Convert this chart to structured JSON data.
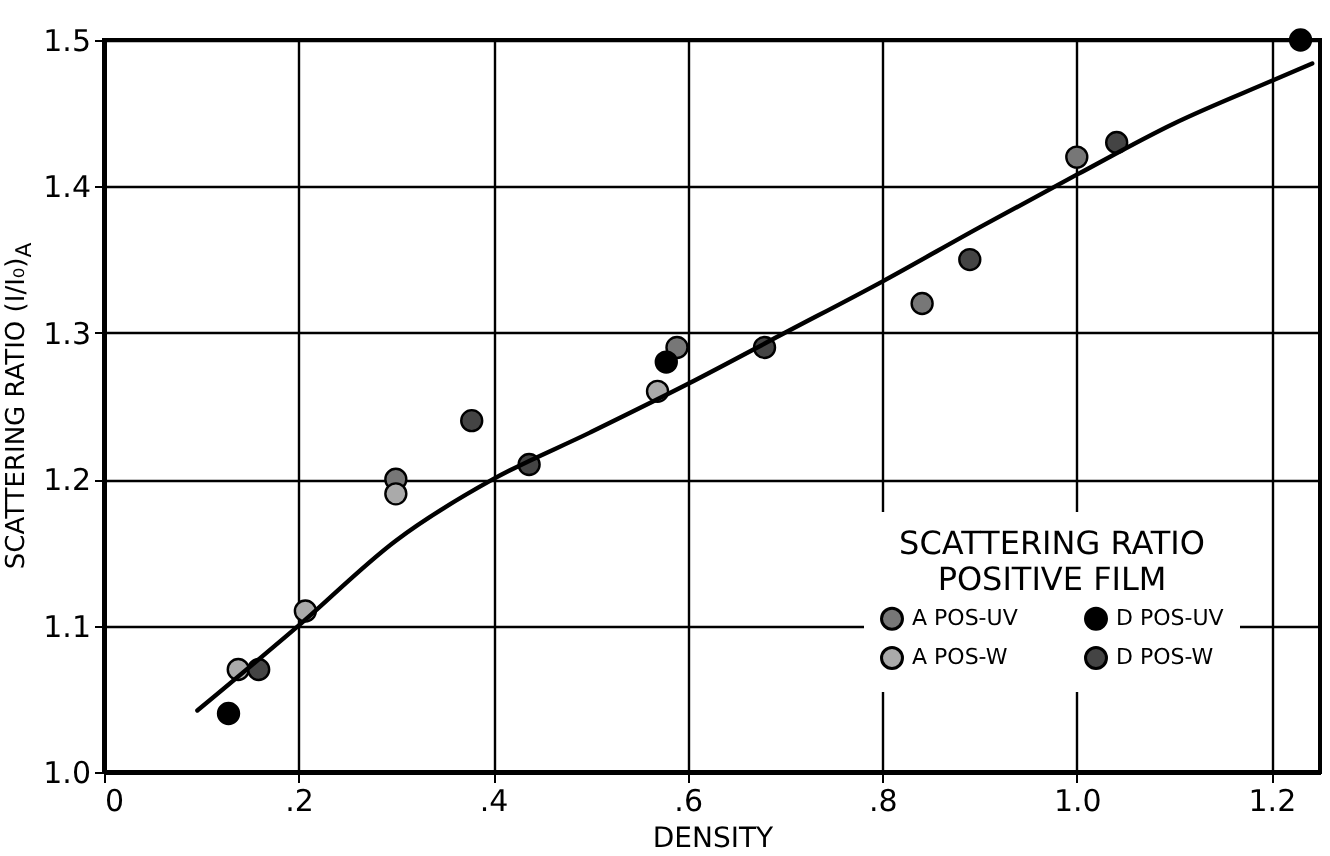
{
  "chart_data": {
    "type": "scatter",
    "xlabel": "DENSITY",
    "ylabel": "SCATTERING RATIO (I/I₀)$_{A}$",
    "legend_title": "SCATTERING RATIO\nPOSITIVE FILM",
    "legend": "bottom right",
    "grid": true,
    "xlim": [
      0,
      1.25
    ],
    "xticks": [
      0,
      {
        "value": 0.2,
        "label": ".2"
      },
      {
        "value": 0.4,
        "label": ".4"
      },
      {
        "value": 0.6,
        "label": ".6"
      },
      {
        "value": 0.8,
        "label": ".8"
      },
      {
        "value": 1.0,
        "label": "1.0"
      },
      {
        "value": 1.2,
        "label": "1.2"
      }
    ],
    "ylim": [
      1.0,
      1.5
    ],
    "yticks": [
      {
        "value": 1.0,
        "label": "1.0"
      },
      1.1,
      1.2,
      1.3,
      1.4,
      1.5
    ],
    "series": [
      {
        "name": "A POS-UV",
        "color": "#777777",
        "marker": "circle",
        "x": [
          0.3,
          0.589,
          0.841,
          1.0
        ],
        "values": [
          1.2,
          1.29,
          1.32,
          1.42
        ]
      },
      {
        "name": "A POS-W",
        "color": "#aaaaaa",
        "marker": "circle",
        "x": [
          0.138,
          0.207,
          0.3,
          0.569
        ],
        "values": [
          1.07,
          1.11,
          1.19,
          1.26
        ]
      },
      {
        "name": "D POS-UV",
        "color": "#000000",
        "marker": "circle",
        "x": [
          0.128,
          0.578,
          1.23
        ],
        "values": [
          1.04,
          1.28,
          1.5
        ]
      },
      {
        "name": "D POS-W",
        "color": "#444444",
        "marker": "circle",
        "x": [
          0.159,
          0.378,
          0.437,
          0.679,
          0.89,
          1.041
        ],
        "values": [
          1.07,
          1.24,
          1.21,
          1.29,
          1.35,
          1.43
        ]
      },
      {
        "type": "line",
        "color": "#000000",
        "x": [
          0.096,
          0.2,
          0.3,
          0.4,
          0.5,
          0.6,
          0.7,
          0.8,
          0.9,
          1.0,
          1.1,
          1.2,
          1.242
        ],
        "values": [
          1.042,
          1.1,
          1.158,
          1.2,
          1.232,
          1.265,
          1.3,
          1.335,
          1.372,
          1.408,
          1.443,
          1.472,
          1.484
        ]
      }
    ]
  }
}
